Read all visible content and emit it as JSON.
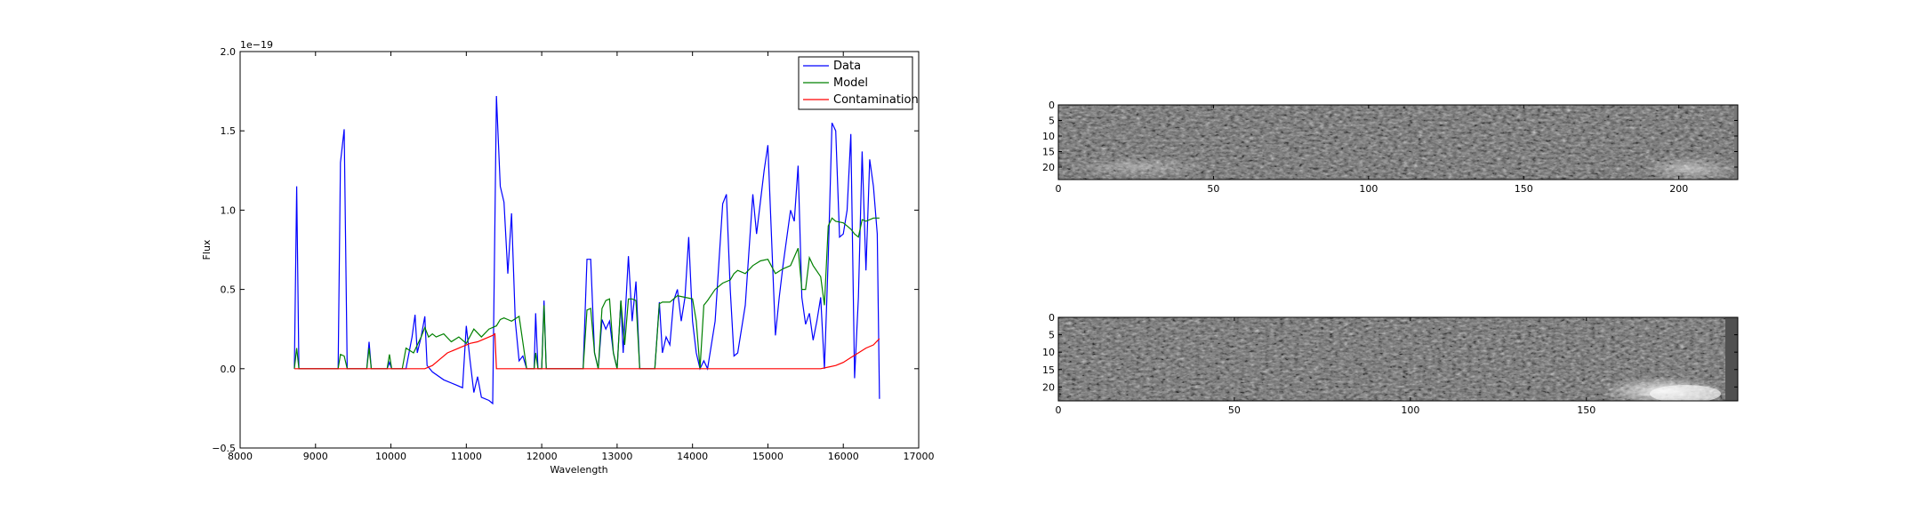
{
  "chart_data": [
    {
      "type": "line",
      "title": "",
      "xlabel": "Wavelength",
      "ylabel": "Flux",
      "offset_label": "1e−19",
      "xlim": [
        8000,
        17000
      ],
      "ylim": [
        -0.5,
        2.0
      ],
      "xticks": [
        8000,
        9000,
        10000,
        11000,
        12000,
        13000,
        14000,
        15000,
        16000,
        17000
      ],
      "yticks": [
        -0.5,
        0.0,
        0.5,
        1.0,
        1.5,
        2.0
      ],
      "xtick_labels": [
        "8000",
        "9000",
        "10000",
        "11000",
        "12000",
        "13000",
        "14000",
        "15000",
        "16000",
        "17000"
      ],
      "ytick_labels": [
        "−0.5",
        "0.0",
        "0.5",
        "1.0",
        "1.5",
        "2.0"
      ],
      "legend_position": "top-right",
      "grid": false,
      "series": [
        {
          "name": "Data",
          "color": "#0000ff",
          "points": [
            [
              8720,
              0.0
            ],
            [
              8750,
              1.15
            ],
            [
              8780,
              0.0
            ],
            [
              9000,
              0.0
            ],
            [
              9300,
              0.0
            ],
            [
              9330,
              1.3
            ],
            [
              9380,
              1.51
            ],
            [
              9420,
              0.0
            ],
            [
              9680,
              0.0
            ],
            [
              9710,
              0.17
            ],
            [
              9740,
              0.0
            ],
            [
              9950,
              0.0
            ],
            [
              9980,
              0.04
            ],
            [
              10010,
              0.0
            ],
            [
              10200,
              0.0
            ],
            [
              10280,
              0.2
            ],
            [
              10320,
              0.34
            ],
            [
              10350,
              0.1
            ],
            [
              10400,
              0.2
            ],
            [
              10450,
              0.33
            ],
            [
              10480,
              0.02
            ],
            [
              10550,
              -0.02
            ],
            [
              10700,
              -0.07
            ],
            [
              10850,
              -0.1
            ],
            [
              10950,
              -0.12
            ],
            [
              11000,
              0.27
            ],
            [
              11050,
              0.05
            ],
            [
              11100,
              -0.15
            ],
            [
              11150,
              -0.05
            ],
            [
              11200,
              -0.18
            ],
            [
              11300,
              -0.2
            ],
            [
              11350,
              -0.22
            ],
            [
              11400,
              1.72
            ],
            [
              11450,
              1.15
            ],
            [
              11500,
              1.05
            ],
            [
              11550,
              0.6
            ],
            [
              11600,
              0.98
            ],
            [
              11650,
              0.3
            ],
            [
              11700,
              0.05
            ],
            [
              11750,
              0.08
            ],
            [
              11800,
              0.0
            ],
            [
              11900,
              0.0
            ],
            [
              11920,
              0.35
            ],
            [
              11950,
              0.0
            ],
            [
              12000,
              0.0
            ],
            [
              12030,
              0.43
            ],
            [
              12060,
              0.0
            ],
            [
              12300,
              0.0
            ],
            [
              12550,
              0.0
            ],
            [
              12600,
              0.69
            ],
            [
              12650,
              0.69
            ],
            [
              12700,
              0.1
            ],
            [
              12750,
              0.0
            ],
            [
              12800,
              0.31
            ],
            [
              12850,
              0.25
            ],
            [
              12900,
              0.3
            ],
            [
              12950,
              0.1
            ],
            [
              13000,
              0.0
            ],
            [
              13050,
              0.43
            ],
            [
              13080,
              0.1
            ],
            [
              13150,
              0.71
            ],
            [
              13200,
              0.3
            ],
            [
              13250,
              0.55
            ],
            [
              13300,
              0.0
            ],
            [
              13400,
              0.0
            ],
            [
              13500,
              0.0
            ],
            [
              13560,
              0.42
            ],
            [
              13600,
              0.1
            ],
            [
              13650,
              0.2
            ],
            [
              13700,
              0.15
            ],
            [
              13750,
              0.43
            ],
            [
              13800,
              0.5
            ],
            [
              13850,
              0.3
            ],
            [
              13900,
              0.45
            ],
            [
              13950,
              0.83
            ],
            [
              14000,
              0.3
            ],
            [
              14050,
              0.1
            ],
            [
              14100,
              0.0
            ],
            [
              14150,
              0.05
            ],
            [
              14200,
              0.0
            ],
            [
              14300,
              0.3
            ],
            [
              14400,
              1.04
            ],
            [
              14450,
              1.1
            ],
            [
              14500,
              0.5
            ],
            [
              14550,
              0.08
            ],
            [
              14600,
              0.1
            ],
            [
              14700,
              0.4
            ],
            [
              14800,
              1.1
            ],
            [
              14850,
              0.85
            ],
            [
              14950,
              1.25
            ],
            [
              15000,
              1.41
            ],
            [
              15100,
              0.21
            ],
            [
              15150,
              0.45
            ],
            [
              15200,
              0.65
            ],
            [
              15300,
              1.0
            ],
            [
              15350,
              0.93
            ],
            [
              15400,
              1.28
            ],
            [
              15450,
              0.45
            ],
            [
              15500,
              0.28
            ],
            [
              15550,
              0.35
            ],
            [
              15600,
              0.18
            ],
            [
              15650,
              0.3
            ],
            [
              15700,
              0.45
            ],
            [
              15750,
              0.0
            ],
            [
              15800,
              0.7
            ],
            [
              15850,
              1.55
            ],
            [
              15900,
              1.5
            ],
            [
              15950,
              0.83
            ],
            [
              16000,
              0.85
            ],
            [
              16050,
              1.0
            ],
            [
              16100,
              1.48
            ],
            [
              16150,
              -0.06
            ],
            [
              16200,
              0.45
            ],
            [
              16250,
              1.37
            ],
            [
              16300,
              0.62
            ],
            [
              16350,
              1.32
            ],
            [
              16400,
              1.15
            ],
            [
              16450,
              0.85
            ],
            [
              16480,
              -0.19
            ]
          ]
        },
        {
          "name": "Model",
          "color": "#008000",
          "points": [
            [
              8720,
              0.0
            ],
            [
              8750,
              0.13
            ],
            [
              8780,
              0.0
            ],
            [
              9300,
              0.0
            ],
            [
              9330,
              0.09
            ],
            [
              9380,
              0.08
            ],
            [
              9420,
              0.0
            ],
            [
              9680,
              0.0
            ],
            [
              9710,
              0.13
            ],
            [
              9740,
              0.0
            ],
            [
              9950,
              0.0
            ],
            [
              9980,
              0.09
            ],
            [
              10010,
              0.0
            ],
            [
              10150,
              0.0
            ],
            [
              10200,
              0.13
            ],
            [
              10300,
              0.1
            ],
            [
              10400,
              0.2
            ],
            [
              10450,
              0.26
            ],
            [
              10500,
              0.2
            ],
            [
              10550,
              0.22
            ],
            [
              10600,
              0.2
            ],
            [
              10700,
              0.22
            ],
            [
              10800,
              0.17
            ],
            [
              10900,
              0.2
            ],
            [
              11000,
              0.16
            ],
            [
              11100,
              0.25
            ],
            [
              11200,
              0.2
            ],
            [
              11300,
              0.25
            ],
            [
              11400,
              0.27
            ],
            [
              11450,
              0.31
            ],
            [
              11500,
              0.32
            ],
            [
              11550,
              0.31
            ],
            [
              11600,
              0.3
            ],
            [
              11700,
              0.33
            ],
            [
              11800,
              0.0
            ],
            [
              11900,
              0.0
            ],
            [
              11920,
              0.1
            ],
            [
              11950,
              0.0
            ],
            [
              12000,
              0.0
            ],
            [
              12030,
              0.4
            ],
            [
              12060,
              0.0
            ],
            [
              12550,
              0.0
            ],
            [
              12600,
              0.37
            ],
            [
              12650,
              0.38
            ],
            [
              12700,
              0.1
            ],
            [
              12750,
              0.0
            ],
            [
              12800,
              0.38
            ],
            [
              12850,
              0.43
            ],
            [
              12900,
              0.44
            ],
            [
              12950,
              0.1
            ],
            [
              13000,
              0.0
            ],
            [
              13050,
              0.43
            ],
            [
              13100,
              0.15
            ],
            [
              13150,
              0.44
            ],
            [
              13200,
              0.44
            ],
            [
              13250,
              0.43
            ],
            [
              13300,
              0.0
            ],
            [
              13500,
              0.0
            ],
            [
              13560,
              0.41
            ],
            [
              13600,
              0.42
            ],
            [
              13700,
              0.42
            ],
            [
              13800,
              0.46
            ],
            [
              13900,
              0.45
            ],
            [
              14000,
              0.44
            ],
            [
              14050,
              0.3
            ],
            [
              14100,
              0.0
            ],
            [
              14150,
              0.4
            ],
            [
              14200,
              0.43
            ],
            [
              14300,
              0.5
            ],
            [
              14400,
              0.54
            ],
            [
              14500,
              0.56
            ],
            [
              14550,
              0.6
            ],
            [
              14600,
              0.62
            ],
            [
              14700,
              0.6
            ],
            [
              14800,
              0.65
            ],
            [
              14900,
              0.68
            ],
            [
              15000,
              0.69
            ],
            [
              15100,
              0.6
            ],
            [
              15200,
              0.63
            ],
            [
              15300,
              0.65
            ],
            [
              15400,
              0.76
            ],
            [
              15450,
              0.5
            ],
            [
              15500,
              0.5
            ],
            [
              15550,
              0.7
            ],
            [
              15600,
              0.65
            ],
            [
              15700,
              0.58
            ],
            [
              15750,
              0.4
            ],
            [
              15800,
              0.9
            ],
            [
              15850,
              0.95
            ],
            [
              15900,
              0.93
            ],
            [
              16000,
              0.92
            ],
            [
              16050,
              0.9
            ],
            [
              16100,
              0.88
            ],
            [
              16150,
              0.85
            ],
            [
              16200,
              0.83
            ],
            [
              16250,
              0.94
            ],
            [
              16300,
              0.93
            ],
            [
              16400,
              0.95
            ],
            [
              16480,
              0.95
            ]
          ]
        },
        {
          "name": "Contamination",
          "color": "#ff0000",
          "points": [
            [
              8720,
              0.0
            ],
            [
              10450,
              0.0
            ],
            [
              10550,
              0.02
            ],
            [
              10650,
              0.06
            ],
            [
              10750,
              0.1
            ],
            [
              10850,
              0.12
            ],
            [
              10950,
              0.14
            ],
            [
              11050,
              0.16
            ],
            [
              11150,
              0.17
            ],
            [
              11250,
              0.19
            ],
            [
              11350,
              0.21
            ],
            [
              11380,
              0.22
            ],
            [
              11400,
              0.0
            ],
            [
              15700,
              0.0
            ],
            [
              15800,
              0.01
            ],
            [
              15900,
              0.02
            ],
            [
              16000,
              0.04
            ],
            [
              16100,
              0.07
            ],
            [
              16200,
              0.1
            ],
            [
              16300,
              0.13
            ],
            [
              16400,
              0.15
            ],
            [
              16480,
              0.19
            ]
          ]
        }
      ]
    },
    {
      "type": "heatmap",
      "title": "",
      "xlim": [
        0,
        219
      ],
      "ylim": [
        24,
        0
      ],
      "xticks": [
        0,
        50,
        100,
        150,
        200
      ],
      "yticks": [
        0,
        5,
        10,
        15,
        20
      ],
      "xtick_labels": [
        "0",
        "50",
        "100",
        "150",
        "200"
      ],
      "ytick_labels": [
        "0",
        "5",
        "10",
        "15",
        "20"
      ],
      "colormap": "gray",
      "grid": false
    },
    {
      "type": "heatmap",
      "title": "",
      "xlim": [
        0,
        193
      ],
      "ylim": [
        24,
        0
      ],
      "xticks": [
        0,
        50,
        100,
        150
      ],
      "yticks": [
        0,
        5,
        10,
        15,
        20
      ],
      "xtick_labels": [
        "0",
        "50",
        "100",
        "150"
      ],
      "ytick_labels": [
        "0",
        "5",
        "10",
        "15",
        "20"
      ],
      "colormap": "gray",
      "grid": false
    }
  ]
}
